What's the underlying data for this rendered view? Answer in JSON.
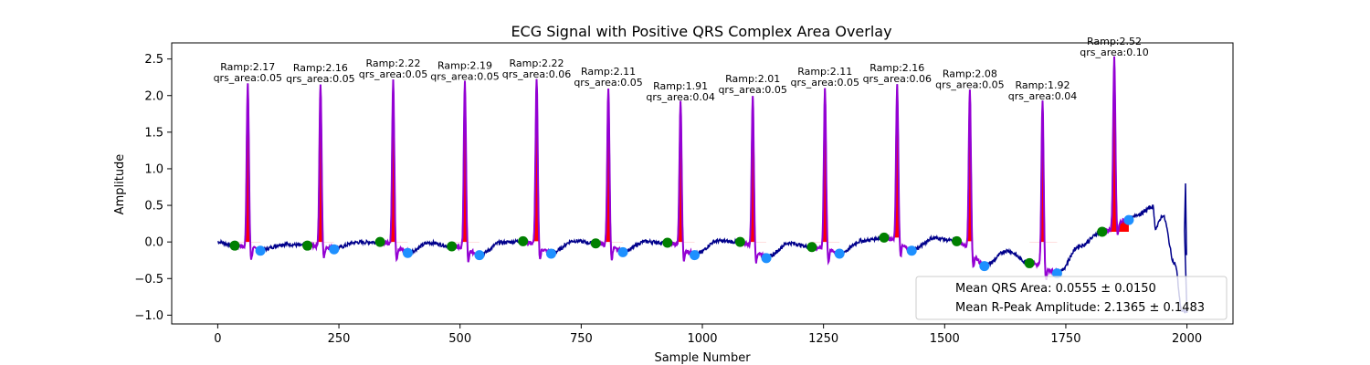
{
  "chart_data": {
    "type": "line",
    "title": "ECG Signal with Positive QRS Complex Area Overlay",
    "xlabel": "Sample Number",
    "ylabel": "Amplitude",
    "xlim": [
      -95,
      2095
    ],
    "ylim": [
      -1.12,
      2.72
    ],
    "xticks": [
      0,
      250,
      500,
      750,
      1000,
      1250,
      1500,
      1750,
      2000
    ],
    "yticks": [
      -1.0,
      -0.5,
      0.0,
      0.5,
      1.0,
      1.5,
      2.0,
      2.5
    ],
    "ytick_labels": [
      "−1.0",
      "−0.5",
      "0.0",
      "0.5",
      "1.0",
      "1.5",
      "2.0",
      "2.5"
    ],
    "grid": false,
    "colors": {
      "signal": "#00008b",
      "qrs_segment": "#9400d3",
      "qrs_area": "#ff0000",
      "q_point": "#008000",
      "s_point": "#1e90ff"
    },
    "beats": [
      {
        "r": 62,
        "ramp": 2.17,
        "qrs_area": 0.05,
        "q": [
          35,
          -0.05
        ],
        "s": [
          88,
          -0.12
        ]
      },
      {
        "r": 212,
        "ramp": 2.16,
        "qrs_area": 0.05,
        "q": [
          185,
          -0.05
        ],
        "s": [
          240,
          -0.1
        ]
      },
      {
        "r": 362,
        "ramp": 2.22,
        "qrs_area": 0.05,
        "q": [
          335,
          0.0
        ],
        "s": [
          392,
          -0.15
        ]
      },
      {
        "r": 510,
        "ramp": 2.19,
        "qrs_area": 0.05,
        "q": [
          483,
          -0.06
        ],
        "s": [
          540,
          -0.18
        ]
      },
      {
        "r": 658,
        "ramp": 2.22,
        "qrs_area": 0.06,
        "q": [
          630,
          0.01
        ],
        "s": [
          688,
          -0.16
        ]
      },
      {
        "r": 806,
        "ramp": 2.11,
        "qrs_area": 0.05,
        "q": [
          780,
          -0.02
        ],
        "s": [
          836,
          -0.14
        ]
      },
      {
        "r": 955,
        "ramp": 1.91,
        "qrs_area": 0.04,
        "q": [
          928,
          -0.01
        ],
        "s": [
          984,
          -0.18
        ]
      },
      {
        "r": 1104,
        "ramp": 2.01,
        "qrs_area": 0.05,
        "q": [
          1078,
          0.0
        ],
        "s": [
          1132,
          -0.22
        ]
      },
      {
        "r": 1253,
        "ramp": 2.11,
        "qrs_area": 0.05,
        "q": [
          1226,
          -0.07
        ],
        "s": [
          1283,
          -0.16
        ]
      },
      {
        "r": 1402,
        "ramp": 2.16,
        "qrs_area": 0.06,
        "q": [
          1375,
          0.06
        ],
        "s": [
          1432,
          -0.12
        ]
      },
      {
        "r": 1552,
        "ramp": 2.08,
        "qrs_area": 0.05,
        "q": [
          1525,
          0.01
        ],
        "s": [
          1582,
          -0.33
        ]
      },
      {
        "r": 1702,
        "ramp": 1.92,
        "qrs_area": 0.04,
        "q": [
          1675,
          -0.29
        ],
        "s": [
          1732,
          -0.43
        ]
      },
      {
        "r": 1850,
        "ramp": 2.52,
        "qrs_area": 0.1,
        "q": [
          1825,
          0.14
        ],
        "s": [
          1880,
          0.3
        ]
      }
    ],
    "legend": {
      "position": "lower right",
      "entries": [
        "Mean QRS Area: 0.0555 ± 0.0150",
        "Mean R-Peak Amplitude: 2.1365 ± 0.1483"
      ]
    }
  }
}
